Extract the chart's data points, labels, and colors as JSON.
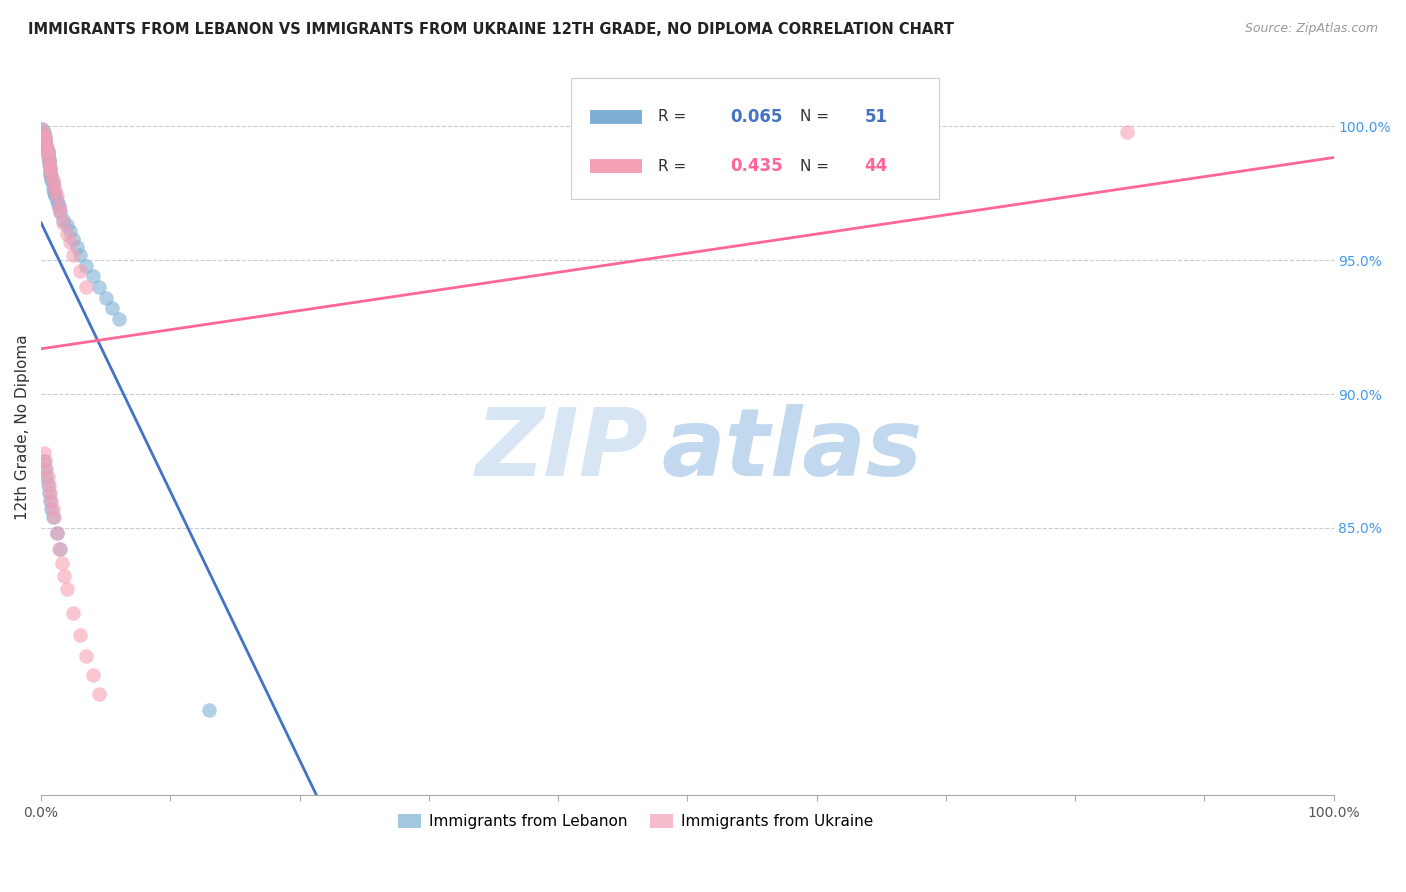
{
  "title": "IMMIGRANTS FROM LEBANON VS IMMIGRANTS FROM UKRAINE 12TH GRADE, NO DIPLOMA CORRELATION CHART",
  "source": "Source: ZipAtlas.com",
  "ylabel": "12th Grade, No Diploma",
  "ylabel_right_ticks": [
    "100.0%",
    "95.0%",
    "90.0%",
    "85.0%"
  ],
  "ylabel_right_vals": [
    1.0,
    0.95,
    0.9,
    0.85
  ],
  "legend_label1": "Immigrants from Lebanon",
  "legend_label2": "Immigrants from Ukraine",
  "R_lebanon": 0.065,
  "N_lebanon": 51,
  "R_ukraine": 0.435,
  "N_ukraine": 44,
  "color_lebanon": "#7EB0D5",
  "color_ukraine": "#F5A0B5",
  "color_lebanon_line": "#4472C4",
  "color_ukraine_line": "#FF6699",
  "color_lebanon_dash": "#AABCDD",
  "leb_x": [
    0.001,
    0.002,
    0.002,
    0.003,
    0.003,
    0.003,
    0.004,
    0.004,
    0.005,
    0.005,
    0.005,
    0.006,
    0.006,
    0.006,
    0.007,
    0.007,
    0.007,
    0.008,
    0.008,
    0.009,
    0.009,
    0.01,
    0.01,
    0.011,
    0.012,
    0.013,
    0.014,
    0.015,
    0.017,
    0.02,
    0.022,
    0.025,
    0.028,
    0.03,
    0.035,
    0.04,
    0.045,
    0.05,
    0.055,
    0.06,
    0.002,
    0.003,
    0.004,
    0.005,
    0.006,
    0.007,
    0.008,
    0.009,
    0.012,
    0.015,
    0.13
  ],
  "leb_y": [
    0.999,
    0.998,
    0.997,
    0.996,
    0.995,
    0.994,
    0.993,
    0.992,
    0.991,
    0.99,
    0.989,
    0.988,
    0.987,
    0.986,
    0.984,
    0.983,
    0.982,
    0.981,
    0.98,
    0.979,
    0.977,
    0.976,
    0.975,
    0.974,
    0.972,
    0.971,
    0.97,
    0.968,
    0.965,
    0.963,
    0.961,
    0.958,
    0.955,
    0.952,
    0.948,
    0.944,
    0.94,
    0.936,
    0.932,
    0.928,
    0.875,
    0.872,
    0.869,
    0.866,
    0.863,
    0.86,
    0.857,
    0.854,
    0.848,
    0.842,
    0.782
  ],
  "ukr_x": [
    0.001,
    0.002,
    0.003,
    0.003,
    0.004,
    0.004,
    0.005,
    0.005,
    0.006,
    0.007,
    0.007,
    0.008,
    0.009,
    0.01,
    0.011,
    0.012,
    0.014,
    0.015,
    0.017,
    0.02,
    0.022,
    0.025,
    0.03,
    0.035,
    0.002,
    0.003,
    0.004,
    0.005,
    0.006,
    0.007,
    0.008,
    0.009,
    0.01,
    0.012,
    0.014,
    0.016,
    0.018,
    0.02,
    0.025,
    0.03,
    0.035,
    0.04,
    0.045,
    0.84
  ],
  "ukr_y": [
    0.999,
    0.997,
    0.996,
    0.995,
    0.993,
    0.992,
    0.991,
    0.989,
    0.987,
    0.985,
    0.984,
    0.982,
    0.98,
    0.978,
    0.976,
    0.974,
    0.97,
    0.968,
    0.964,
    0.96,
    0.957,
    0.952,
    0.946,
    0.94,
    0.878,
    0.875,
    0.872,
    0.869,
    0.866,
    0.863,
    0.86,
    0.857,
    0.854,
    0.848,
    0.842,
    0.837,
    0.832,
    0.827,
    0.818,
    0.81,
    0.802,
    0.795,
    0.788,
    0.998
  ],
  "xlim": [
    0.0,
    1.0
  ],
  "ylim": [
    0.75,
    1.025
  ],
  "grid_color": "#CCCCCC",
  "watermark_zip": "ZIP",
  "watermark_atlas": "atlas",
  "background_color": "#FFFFFF"
}
